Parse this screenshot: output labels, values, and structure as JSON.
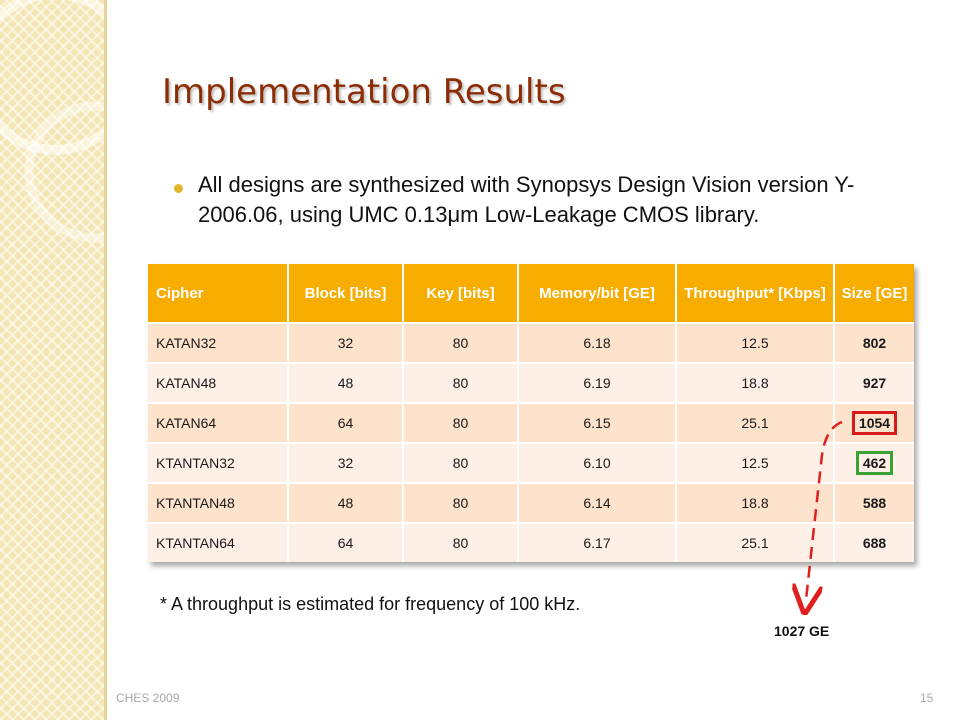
{
  "slide": {
    "title": "Implementation Results",
    "bullet": "All designs are synthesized with Synopsys Design Vision version Y-2006.06, using UMC 0.13μm Low-Leakage CMOS library.",
    "footnote": "* A throughput is estimated for frequency of 100 kHz.",
    "annotation": "1027 GE",
    "footer_left": "CHES 2009",
    "page_number": "15"
  },
  "table": {
    "headers": [
      "Cipher",
      "Block [bits]",
      "Key [bits]",
      "Memory/bit [GE]",
      "Throughput* [Kbps]",
      "Size [GE]"
    ],
    "rows": [
      [
        "KATAN32",
        "32",
        "80",
        "6.18",
        "12.5",
        "802"
      ],
      [
        "KATAN48",
        "48",
        "80",
        "6.19",
        "18.8",
        "927"
      ],
      [
        "KATAN64",
        "64",
        "80",
        "6.15",
        "25.1",
        "1054"
      ],
      [
        "KTANTAN32",
        "32",
        "80",
        "6.10",
        "12.5",
        "462"
      ],
      [
        "KTANTAN48",
        "48",
        "80",
        "6.14",
        "18.8",
        "588"
      ],
      [
        "KTANTAN64",
        "64",
        "80",
        "6.17",
        "25.1",
        "688"
      ]
    ]
  },
  "colors": {
    "header": "#f6ad00",
    "row_odd": "#fde2cc",
    "row_even": "#fef0e6",
    "title": "#8c2d06",
    "highlight_red": "#d81a1a",
    "highlight_green": "#3aa235",
    "bullet": "#e3b52a"
  }
}
